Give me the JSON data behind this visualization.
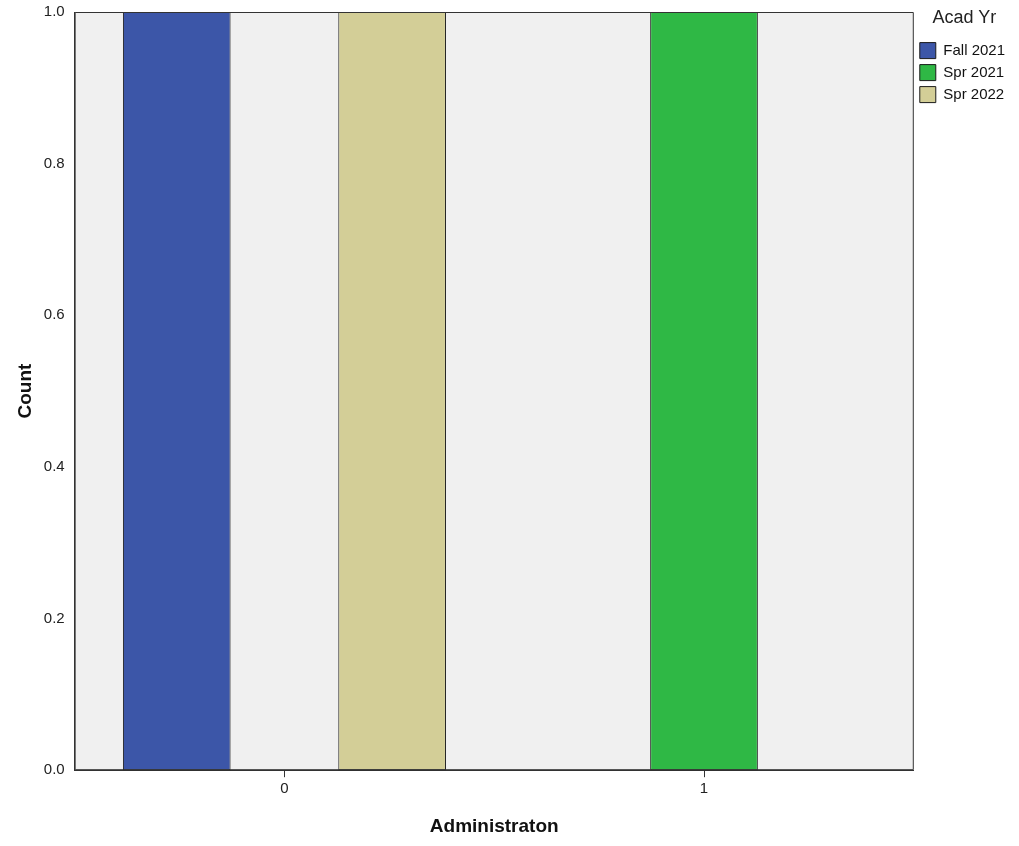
{
  "chart_data": {
    "type": "bar",
    "categories": [
      "0",
      "1"
    ],
    "series": [
      {
        "name": "Fall 2021",
        "color": "#3c56a8",
        "values": [
          1,
          0
        ]
      },
      {
        "name": "Spr 2021",
        "color": "#2fb845",
        "values": [
          0,
          1
        ]
      },
      {
        "name": "Spr 2022",
        "color": "#d3ce97",
        "values": [
          1,
          0
        ]
      }
    ],
    "xlabel": "Administraton",
    "ylabel": "Count",
    "legend_title": "Acad Yr",
    "legend": "right",
    "ylim": [
      0,
      1
    ],
    "yticks": [
      {
        "value": 0,
        "label": "0.0"
      },
      {
        "value": 0.2,
        "label": "0.2"
      },
      {
        "value": 0.4,
        "label": "0.4"
      },
      {
        "value": 0.6,
        "label": "0.6"
      },
      {
        "value": 0.8,
        "label": "0.8"
      },
      {
        "value": 1,
        "label": "1.0"
      }
    ]
  }
}
